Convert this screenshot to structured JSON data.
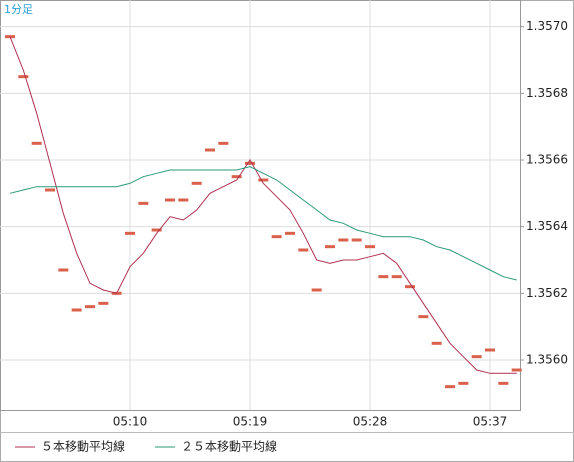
{
  "chart_data": {
    "type": "line",
    "title": "1分足",
    "categories": [
      null,
      null,
      null,
      null,
      null,
      null,
      null,
      null,
      null,
      "05:10",
      null,
      null,
      null,
      null,
      null,
      null,
      null,
      null,
      "05:19",
      null,
      null,
      null,
      null,
      null,
      null,
      null,
      null,
      "05:28",
      null,
      null,
      null,
      null,
      null,
      null,
      null,
      null,
      "05:37",
      null,
      null
    ],
    "candles": {
      "color": "#d9604a",
      "values": [
        1.35697,
        1.35685,
        1.35665,
        1.35651,
        1.35627,
        1.35615,
        1.35616,
        1.35617,
        1.3562,
        1.35638,
        1.35647,
        1.35639,
        1.35648,
        1.35648,
        1.35653,
        1.35663,
        1.35665,
        1.35655,
        1.35659,
        1.35654,
        1.35637,
        1.35638,
        1.35633,
        1.35621,
        1.35634,
        1.35636,
        1.35636,
        1.35634,
        1.35625,
        1.35625,
        1.35622,
        1.35613,
        1.35605,
        1.35592,
        1.35593,
        1.35601,
        1.35603,
        1.35593,
        1.35597
      ]
    },
    "series": [
      {
        "name": "５本移動平均線",
        "color": "#b03050",
        "values": [
          1.35697,
          1.35687,
          1.35674,
          1.35659,
          1.35644,
          1.35632,
          1.35623,
          1.35621,
          1.3562,
          1.35628,
          1.35632,
          1.35638,
          1.35643,
          1.35642,
          1.35645,
          1.3565,
          1.35652,
          1.35654,
          1.3566,
          1.35653,
          1.35649,
          1.35645,
          1.35638,
          1.3563,
          1.35629,
          1.3563,
          1.3563,
          1.35631,
          1.35632,
          1.35629,
          1.35623,
          1.35617,
          1.35611,
          1.35605,
          1.35601,
          1.35597,
          1.35596,
          1.35596,
          1.35596
        ]
      },
      {
        "name": "２５本移動平均線",
        "color": "#2a9a7a",
        "values": [
          1.3565,
          1.35651,
          1.35652,
          1.35652,
          1.35652,
          1.35652,
          1.35652,
          1.35652,
          1.35652,
          1.35653,
          1.35655,
          1.35656,
          1.35657,
          1.35657,
          1.35657,
          1.35657,
          1.35657,
          1.35657,
          1.35658,
          1.35656,
          1.35654,
          1.35651,
          1.35648,
          1.35645,
          1.35642,
          1.35641,
          1.35639,
          1.35638,
          1.35637,
          1.35637,
          1.35637,
          1.35636,
          1.35634,
          1.35633,
          1.35631,
          1.35629,
          1.35627,
          1.35625,
          1.35624
        ]
      }
    ],
    "ylim": [
      1.35585,
      1.35708
    ],
    "yticks": [
      {
        "value": 1.357,
        "label": "1.3570"
      },
      1.3568,
      1.3566,
      1.3564,
      1.3562,
      {
        "value": 1.356,
        "label": "1.3560"
      }
    ],
    "grid": true
  }
}
